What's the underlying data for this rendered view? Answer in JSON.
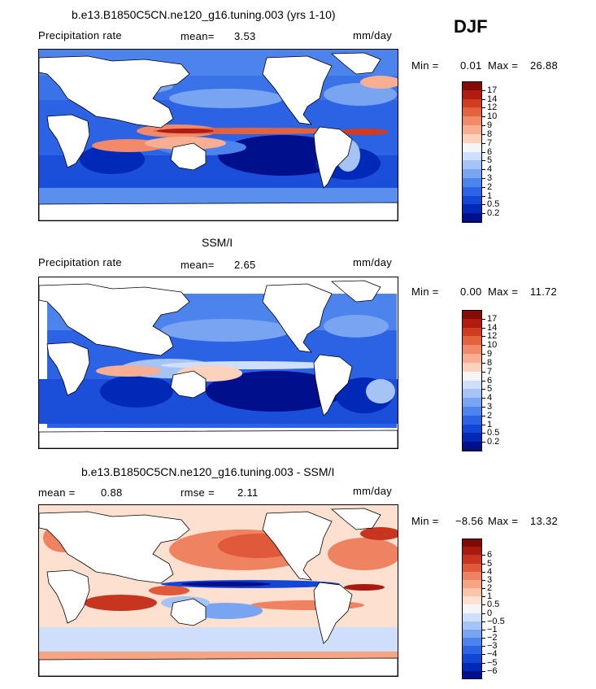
{
  "season": "DJF",
  "colors": {
    "precip": [
      "#000f8c",
      "#0029b8",
      "#1446d6",
      "#2c63e4",
      "#4d83ec",
      "#78a4f1",
      "#a5c3f5",
      "#cfdefa",
      "#f5f5f5",
      "#fcd2bd",
      "#f8ae92",
      "#f08a6a",
      "#e4633f",
      "#cf3c22",
      "#b01c12",
      "#860a06"
    ],
    "diff": [
      "#000f8c",
      "#0029b8",
      "#1446d6",
      "#2c63e4",
      "#4d83ec",
      "#78a4f1",
      "#a5c3f5",
      "#cfdefa",
      "#f5f5f5",
      "#fde0cf",
      "#fcc4a8",
      "#f6a484",
      "#ef8260",
      "#e0593a",
      "#c73520",
      "#a81a10",
      "#7e0a05"
    ]
  },
  "panels": [
    {
      "title": "b.e13.B1850C5CN.ne120_g16.tuning.003 (yrs 1-10)",
      "left_label": "Precipitation rate",
      "mean_label": "mean=",
      "mean_value": "3.53",
      "units": "mm/day",
      "min_label": "Min =",
      "min_value": "0.01",
      "max_label": "Max =",
      "max_value": "26.88"
    },
    {
      "title": "SSM/I",
      "left_label": "Precipitation rate",
      "mean_label": "mean=",
      "mean_value": "2.65",
      "units": "mm/day",
      "min_label": "Min =",
      "min_value": "0.00",
      "max_label": "Max =",
      "max_value": "11.72"
    },
    {
      "title": "b.e13.B1850C5CN.ne120_g16.tuning.003 - SSM/I",
      "mean_label": "mean =",
      "mean_value": "0.88",
      "rmse_label": "rmse =",
      "rmse_value": "2.11",
      "units": "mm/day",
      "min_label": "Min =",
      "min_value": "−8.56",
      "max_label": "Max =",
      "max_value": "13.32"
    }
  ],
  "chart_data": [
    {
      "type": "heatmap",
      "title": "b.e13.B1850C5CN.ne120_g16.tuning.003 (yrs 1-10)",
      "variable": "Precipitation rate",
      "units": "mm/day",
      "mean": 3.53,
      "min": 0.01,
      "max": 26.88,
      "colorbar_levels": [
        "0.2",
        "0.5",
        "1",
        "2",
        "3",
        "4",
        "5",
        "6",
        "7",
        "8",
        "9",
        "10",
        "12",
        "14",
        "17"
      ]
    },
    {
      "type": "heatmap",
      "title": "SSM/I",
      "variable": "Precipitation rate",
      "units": "mm/day",
      "mean": 2.65,
      "min": 0.0,
      "max": 11.72,
      "colorbar_levels": [
        "0.2",
        "0.5",
        "1",
        "2",
        "3",
        "4",
        "5",
        "6",
        "7",
        "8",
        "9",
        "10",
        "12",
        "14",
        "17"
      ]
    },
    {
      "type": "heatmap",
      "title": "b.e13.B1850C5CN.ne120_g16.tuning.003 - SSM/I",
      "units": "mm/day",
      "mean": 0.88,
      "rmse": 2.11,
      "min": -8.56,
      "max": 13.32,
      "colorbar_levels": [
        "−6",
        "−5",
        "−4",
        "−3",
        "−2",
        "−1",
        "−0.5",
        "0",
        "0.5",
        "1",
        "2",
        "3",
        "4",
        "5",
        "6"
      ]
    }
  ]
}
